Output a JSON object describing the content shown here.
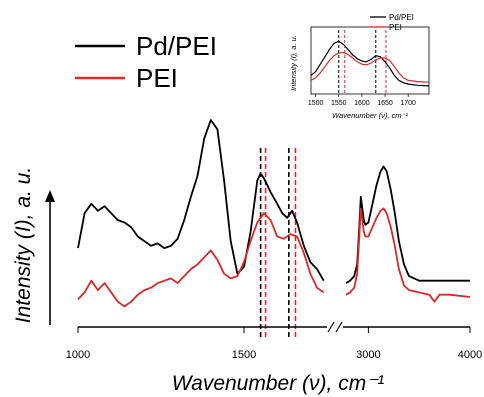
{
  "chart_data": [
    {
      "type": "line",
      "xlabel": "Wavenumber (ν),  cm⁻¹",
      "ylabel": "Intensity (I),  a. u.",
      "x_ticks": [
        "1000",
        "1500",
        "3000",
        "4000"
      ],
      "x_break": {
        "segments": [
          [
            1000,
            1750
          ],
          [
            2750,
            4000
          ]
        ]
      },
      "legend": {
        "placement": "top-left"
      },
      "series": [
        {
          "name": "Pd/PEI",
          "color": "#000000",
          "segments": [
            [
              [
                1000,
                0.33
              ],
              [
                1020,
                0.48
              ],
              [
                1040,
                0.52
              ],
              [
                1060,
                0.49
              ],
              [
                1080,
                0.51
              ],
              [
                1100,
                0.48
              ],
              [
                1120,
                0.45
              ],
              [
                1140,
                0.44
              ],
              [
                1160,
                0.42
              ],
              [
                1180,
                0.38
              ],
              [
                1200,
                0.36
              ],
              [
                1220,
                0.34
              ],
              [
                1240,
                0.35
              ],
              [
                1260,
                0.33
              ],
              [
                1280,
                0.34
              ],
              [
                1300,
                0.37
              ],
              [
                1320,
                0.45
              ],
              [
                1340,
                0.55
              ],
              [
                1360,
                0.64
              ],
              [
                1380,
                0.8
              ],
              [
                1400,
                0.88
              ],
              [
                1420,
                0.84
              ],
              [
                1440,
                0.62
              ],
              [
                1460,
                0.36
              ],
              [
                1480,
                0.22
              ],
              [
                1500,
                0.25
              ],
              [
                1520,
                0.4
              ],
              [
                1540,
                0.62
              ],
              [
                1550,
                0.65
              ],
              [
                1560,
                0.63
              ],
              [
                1580,
                0.57
              ],
              [
                1600,
                0.52
              ],
              [
                1615,
                0.48
              ],
              [
                1630,
                0.46
              ],
              [
                1645,
                0.49
              ],
              [
                1660,
                0.44
              ],
              [
                1680,
                0.34
              ],
              [
                1700,
                0.27
              ],
              [
                1720,
                0.24
              ],
              [
                1740,
                0.19
              ]
            ],
            [
              [
                2780,
                0.18
              ],
              [
                2820,
                0.19
              ],
              [
                2860,
                0.21
              ],
              [
                2890,
                0.26
              ],
              [
                2910,
                0.42
              ],
              [
                2925,
                0.55
              ],
              [
                2940,
                0.5
              ],
              [
                2955,
                0.45
              ],
              [
                2970,
                0.43
              ],
              [
                3000,
                0.44
              ],
              [
                3040,
                0.52
              ],
              [
                3080,
                0.6
              ],
              [
                3120,
                0.66
              ],
              [
                3150,
                0.68
              ],
              [
                3180,
                0.66
              ],
              [
                3220,
                0.58
              ],
              [
                3260,
                0.48
              ],
              [
                3300,
                0.36
              ],
              [
                3350,
                0.26
              ],
              [
                3400,
                0.21
              ],
              [
                3500,
                0.19
              ],
              [
                3600,
                0.19
              ],
              [
                3700,
                0.19
              ],
              [
                3800,
                0.19
              ],
              [
                3900,
                0.19
              ],
              [
                4000,
                0.19
              ]
            ]
          ]
        },
        {
          "name": "PEI",
          "color": "#d32a2a",
          "segments": [
            [
              [
                1000,
                0.11
              ],
              [
                1020,
                0.14
              ],
              [
                1040,
                0.19
              ],
              [
                1060,
                0.15
              ],
              [
                1080,
                0.18
              ],
              [
                1100,
                0.14
              ],
              [
                1120,
                0.1
              ],
              [
                1140,
                0.08
              ],
              [
                1160,
                0.1
              ],
              [
                1180,
                0.13
              ],
              [
                1200,
                0.15
              ],
              [
                1220,
                0.16
              ],
              [
                1240,
                0.18
              ],
              [
                1260,
                0.19
              ],
              [
                1280,
                0.2
              ],
              [
                1300,
                0.18
              ],
              [
                1320,
                0.21
              ],
              [
                1340,
                0.24
              ],
              [
                1360,
                0.26
              ],
              [
                1380,
                0.29
              ],
              [
                1400,
                0.32
              ],
              [
                1420,
                0.28
              ],
              [
                1440,
                0.22
              ],
              [
                1460,
                0.2
              ],
              [
                1480,
                0.21
              ],
              [
                1500,
                0.27
              ],
              [
                1520,
                0.36
              ],
              [
                1540,
                0.44
              ],
              [
                1560,
                0.48
              ],
              [
                1580,
                0.45
              ],
              [
                1600,
                0.38
              ],
              [
                1620,
                0.37
              ],
              [
                1640,
                0.39
              ],
              [
                1660,
                0.38
              ],
              [
                1680,
                0.31
              ],
              [
                1700,
                0.22
              ],
              [
                1720,
                0.16
              ],
              [
                1740,
                0.14
              ]
            ],
            [
              [
                2780,
                0.13
              ],
              [
                2820,
                0.14
              ],
              [
                2860,
                0.16
              ],
              [
                2890,
                0.22
              ],
              [
                2910,
                0.38
              ],
              [
                2925,
                0.5
              ],
              [
                2940,
                0.45
              ],
              [
                2955,
                0.4
              ],
              [
                2970,
                0.38
              ],
              [
                3000,
                0.38
              ],
              [
                3040,
                0.42
              ],
              [
                3080,
                0.46
              ],
              [
                3120,
                0.49
              ],
              [
                3150,
                0.5
              ],
              [
                3180,
                0.48
              ],
              [
                3220,
                0.42
              ],
              [
                3260,
                0.34
              ],
              [
                3300,
                0.24
              ],
              [
                3350,
                0.17
              ],
              [
                3400,
                0.15
              ],
              [
                3500,
                0.14
              ],
              [
                3600,
                0.13
              ],
              [
                3650,
                0.1
              ],
              [
                3700,
                0.13
              ],
              [
                3800,
                0.13
              ],
              [
                4000,
                0.12
              ]
            ]
          ]
        }
      ],
      "reference_lines": [
        {
          "series": "Pd/PEI",
          "x": 1550,
          "style": "dashed"
        },
        {
          "series": "PEI",
          "x": 1565,
          "style": "dashed"
        },
        {
          "series": "Pd/PEI",
          "x": 1635,
          "style": "dashed"
        },
        {
          "series": "PEI",
          "x": 1655,
          "style": "dashed"
        }
      ]
    },
    {
      "type": "line",
      "xlabel": "Wavenumber (ν),  cm⁻¹",
      "ylabel": "Intensity (I),  a. u.",
      "xlim": [
        1490,
        1745
      ],
      "x_ticks": [
        "1500",
        "1550",
        "1600",
        "1650",
        "1700"
      ],
      "legend": {
        "placement": "top-right"
      },
      "series": [
        {
          "name": "Pd/PEI",
          "color": "#000000",
          "points": [
            [
              1490,
              0.3
            ],
            [
              1500,
              0.36
            ],
            [
              1510,
              0.48
            ],
            [
              1520,
              0.6
            ],
            [
              1530,
              0.72
            ],
            [
              1540,
              0.82
            ],
            [
              1550,
              0.85
            ],
            [
              1560,
              0.8
            ],
            [
              1570,
              0.72
            ],
            [
              1580,
              0.63
            ],
            [
              1590,
              0.57
            ],
            [
              1600,
              0.53
            ],
            [
              1610,
              0.52
            ],
            [
              1620,
              0.56
            ],
            [
              1630,
              0.62
            ],
            [
              1640,
              0.6
            ],
            [
              1650,
              0.52
            ],
            [
              1660,
              0.42
            ],
            [
              1670,
              0.3
            ],
            [
              1680,
              0.22
            ],
            [
              1690,
              0.18
            ],
            [
              1700,
              0.16
            ],
            [
              1720,
              0.14
            ],
            [
              1745,
              0.13
            ]
          ]
        },
        {
          "name": "PEI",
          "color": "#d32a2a",
          "points": [
            [
              1490,
              0.22
            ],
            [
              1500,
              0.26
            ],
            [
              1510,
              0.34
            ],
            [
              1520,
              0.44
            ],
            [
              1530,
              0.54
            ],
            [
              1540,
              0.62
            ],
            [
              1550,
              0.66
            ],
            [
              1560,
              0.67
            ],
            [
              1570,
              0.64
            ],
            [
              1580,
              0.58
            ],
            [
              1590,
              0.52
            ],
            [
              1600,
              0.48
            ],
            [
              1610,
              0.47
            ],
            [
              1620,
              0.5
            ],
            [
              1630,
              0.55
            ],
            [
              1640,
              0.58
            ],
            [
              1650,
              0.58
            ],
            [
              1660,
              0.54
            ],
            [
              1670,
              0.44
            ],
            [
              1680,
              0.34
            ],
            [
              1690,
              0.26
            ],
            [
              1700,
              0.22
            ],
            [
              1720,
              0.2
            ],
            [
              1745,
              0.19
            ]
          ]
        }
      ],
      "reference_lines": [
        {
          "series": "Pd/PEI",
          "x": 1550,
          "style": "dashed"
        },
        {
          "series": "PEI",
          "x": 1563,
          "style": "dashed"
        },
        {
          "series": "Pd/PEI",
          "x": 1630,
          "style": "dashed"
        },
        {
          "series": "PEI",
          "x": 1652,
          "style": "dashed"
        }
      ]
    }
  ]
}
